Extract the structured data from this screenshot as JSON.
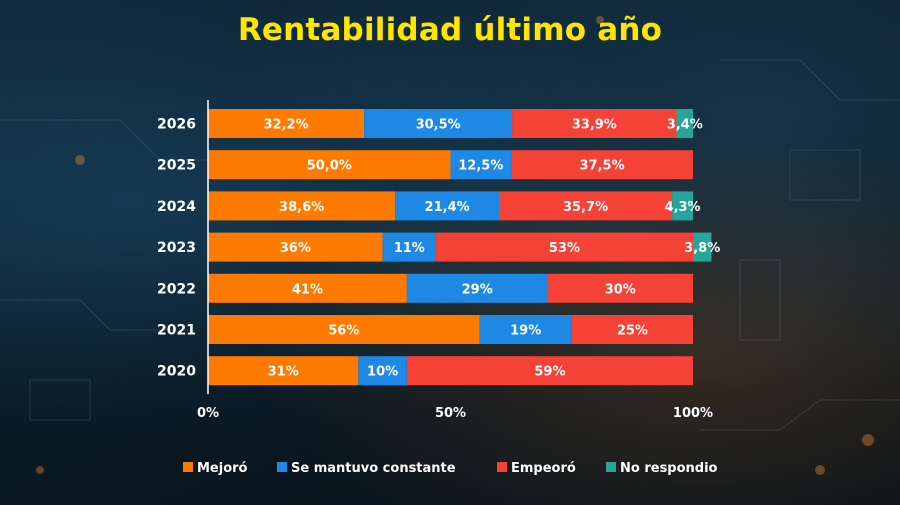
{
  "chart_data": {
    "type": "bar",
    "orientation": "horizontal",
    "stacked": true,
    "title": "Rentabilidad último año",
    "categories": [
      "2026",
      "2025",
      "2024",
      "2023",
      "2022",
      "2021",
      "2020"
    ],
    "series": [
      {
        "name": "Mejoró",
        "color": "#ff7a00",
        "values": [
          32.2,
          50.0,
          38.6,
          36,
          41,
          56,
          31
        ],
        "labels": [
          "32,2%",
          "50,0%",
          "38,6%",
          "36%",
          "41%",
          "56%",
          "31%"
        ]
      },
      {
        "name": "Se mantuvo constante",
        "color": "#1e88e5",
        "values": [
          30.5,
          12.5,
          21.4,
          11,
          29,
          19,
          10
        ],
        "labels": [
          "30,5%",
          "12,5%",
          "21,4%",
          "11%",
          "29%",
          "19%",
          "10%"
        ]
      },
      {
        "name": "Empeoró",
        "color": "#f44336",
        "values": [
          33.9,
          37.5,
          35.7,
          53,
          30,
          25,
          59
        ],
        "labels": [
          "33,9%",
          "37,5%",
          "35,7%",
          "53%",
          "30%",
          "25%",
          "59%"
        ]
      },
      {
        "name": "No respondio",
        "color": "#26a69a",
        "values": [
          3.4,
          0,
          4.3,
          3.8,
          0,
          0,
          0
        ],
        "labels": [
          "3,4%",
          "",
          "4,3%",
          "3,8%",
          "",
          "",
          ""
        ]
      }
    ],
    "xlim": [
      0,
      100
    ],
    "xticks": [
      "0%",
      "50%",
      "100%"
    ],
    "grid": false,
    "legend_position": "bottom"
  }
}
